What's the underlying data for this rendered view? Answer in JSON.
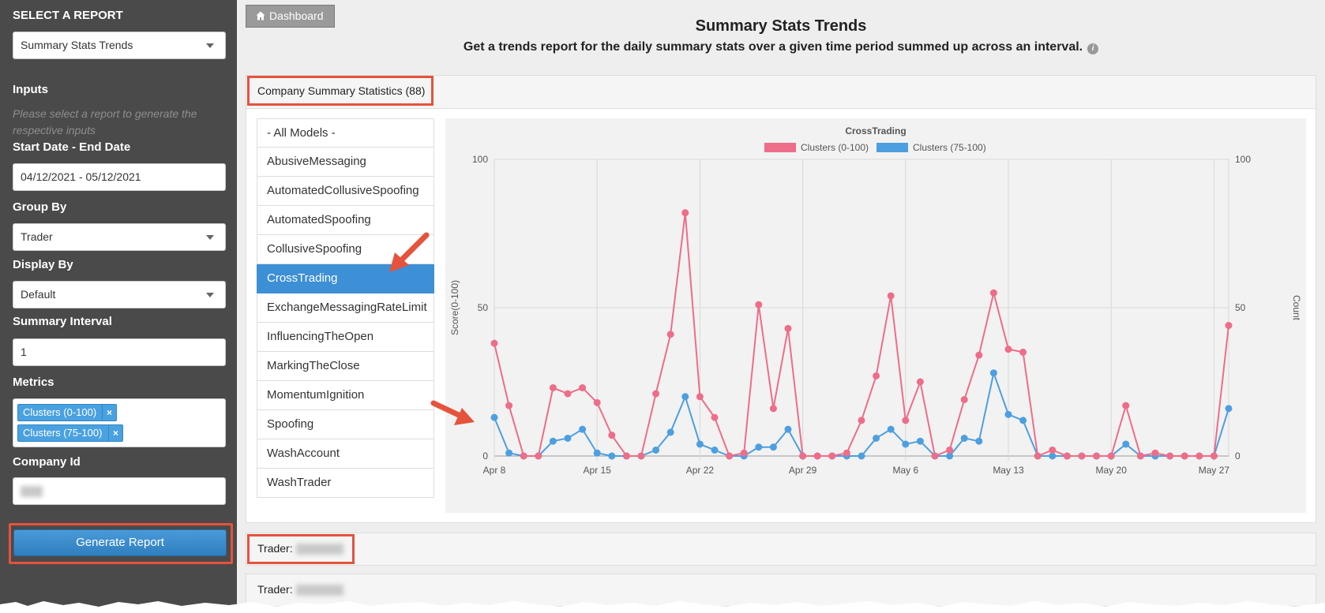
{
  "sidebar": {
    "title": "SELECT A REPORT",
    "report_select": "Summary Stats Trends",
    "inputs_label": "Inputs",
    "inputs_hint": "Please select a report to generate the respective inputs",
    "date_label": "Start Date - End Date",
    "date_value": "04/12/2021 - 05/12/2021",
    "group_by_label": "Group By",
    "group_by_value": "Trader",
    "display_by_label": "Display By",
    "display_by_value": "Default",
    "interval_label": "Summary Interval",
    "interval_value": "1",
    "metrics_label": "Metrics",
    "metrics": [
      "Clusters (0-100)",
      "Clusters (75-100)"
    ],
    "remove_glyph": "×",
    "company_label": "Company Id",
    "generate_label": "Generate Report"
  },
  "header": {
    "dashboard_label": "Dashboard",
    "title": "Summary Stats Trends",
    "subtitle": "Get a trends report for the daily summary stats over a given time period summed up across an interval.",
    "info_glyph": "i"
  },
  "panel": {
    "heading": "Company Summary Statistics (88)",
    "models": [
      "- All Models -",
      "AbusiveMessaging",
      "AutomatedCollusiveSpoofing",
      "AutomatedSpoofing",
      "CollusiveSpoofing",
      "CrossTrading",
      "ExchangeMessagingRateLimit",
      "InfluencingTheOpen",
      "MarkingTheClose",
      "MomentumIgnition",
      "Spoofing",
      "WashAccount",
      "WashTrader"
    ],
    "active_model_index": 5
  },
  "traders": [
    {
      "label": "Trader:"
    },
    {
      "label": "Trader:"
    }
  ],
  "colors": {
    "series1": "#ee6d88",
    "series2": "#4d9fe0",
    "active": "#3d8fd6",
    "annotation": "#e5533c"
  },
  "chart_data": {
    "type": "line",
    "title": "CrossTrading",
    "ylabel": "Score(0-100)",
    "y2label": "Count",
    "ylim": [
      0,
      100
    ],
    "y_ticks": [
      0,
      50,
      100
    ],
    "x_tick_labels": [
      "Apr 8",
      "Apr 15",
      "Apr 22",
      "Apr 29",
      "May 6",
      "May 13",
      "May 20",
      "May 27"
    ],
    "x_tick_index": [
      0,
      7,
      14,
      21,
      28,
      35,
      42,
      49
    ],
    "legend_position": "top",
    "grid": true,
    "series": [
      {
        "name": "Clusters (0-100)",
        "values": [
          38,
          17,
          0,
          0,
          23,
          21,
          23,
          18,
          7,
          0,
          0,
          21,
          41,
          82,
          20,
          13,
          0,
          1,
          51,
          16,
          43,
          0,
          0,
          0,
          1,
          12,
          27,
          54,
          12,
          25,
          0,
          2,
          19,
          34,
          55,
          36,
          35,
          0,
          2,
          0,
          0,
          0,
          0,
          17,
          0,
          1,
          0,
          0,
          0,
          0,
          44
        ]
      },
      {
        "name": "Clusters (75-100)",
        "values": [
          13,
          1,
          0,
          0,
          5,
          6,
          9,
          1,
          0,
          0,
          0,
          2,
          8,
          20,
          4,
          2,
          0,
          0,
          3,
          3,
          9,
          0,
          0,
          0,
          0,
          0,
          6,
          9,
          4,
          5,
          0,
          0,
          6,
          5,
          28,
          14,
          12,
          0,
          0,
          0,
          0,
          0,
          0,
          4,
          0,
          0,
          0,
          0,
          0,
          0,
          16
        ]
      }
    ]
  }
}
